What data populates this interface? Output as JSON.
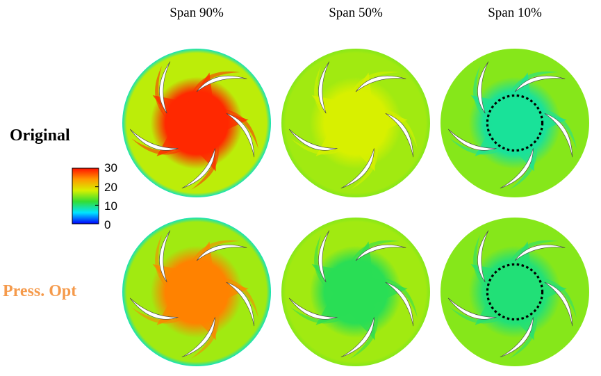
{
  "column_titles": [
    "Span 90%",
    "Span 50%",
    "Span 10%"
  ],
  "row_labels": [
    {
      "text": "Original",
      "color": "#000000"
    },
    {
      "text": "Press. Opt",
      "color": "#f59a4b"
    }
  ],
  "colorbar": {
    "ticks": [
      "30",
      "20",
      "10",
      "0"
    ],
    "min": 0,
    "max": 30,
    "colors": [
      "#0000ff",
      "#00e5ff",
      "#33dd33",
      "#d8f000",
      "#ff9900",
      "#ff1100"
    ]
  },
  "panels": [
    {
      "row": 0,
      "col": 0,
      "hub_level": 29,
      "field_level": 17,
      "rim_level": 8,
      "marked_circle": false
    },
    {
      "row": 0,
      "col": 1,
      "hub_level": 18,
      "field_level": 16,
      "rim_level": 15,
      "marked_circle": false
    },
    {
      "row": 0,
      "col": 2,
      "hub_level": 9,
      "field_level": 15,
      "rim_level": 15,
      "marked_circle": true
    },
    {
      "row": 1,
      "col": 0,
      "hub_level": 25,
      "field_level": 16,
      "rim_level": 8,
      "marked_circle": false
    },
    {
      "row": 1,
      "col": 1,
      "hub_level": 11,
      "field_level": 16,
      "rim_level": 15,
      "marked_circle": false
    },
    {
      "row": 1,
      "col": 2,
      "hub_level": 10,
      "field_level": 15,
      "rim_level": 15,
      "marked_circle": true
    }
  ]
}
